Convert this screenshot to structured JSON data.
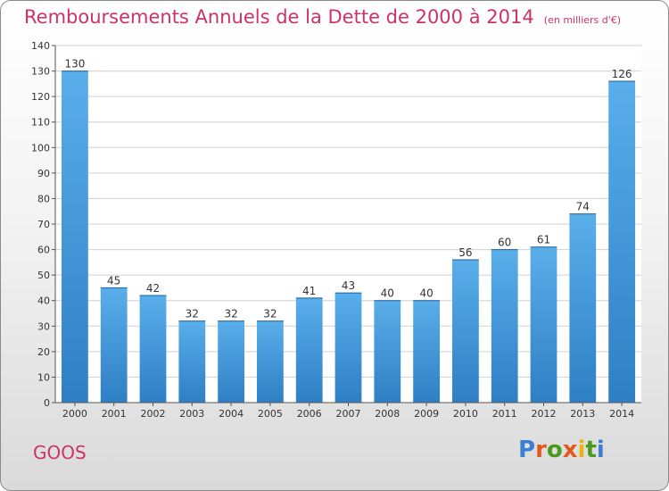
{
  "chart_data": {
    "type": "bar",
    "title": "Remboursements Annuels de la Dette de 2000 à 2014",
    "subtitle": "(en milliers d'€)",
    "categories": [
      "2000",
      "2001",
      "2002",
      "2003",
      "2004",
      "2005",
      "2006",
      "2007",
      "2008",
      "2009",
      "2010",
      "2011",
      "2012",
      "2013",
      "2014"
    ],
    "values": [
      130,
      45,
      42,
      32,
      32,
      32,
      41,
      43,
      40,
      40,
      56,
      60,
      61,
      74,
      126
    ],
    "ylim": [
      0,
      140
    ],
    "yticks": [
      0,
      10,
      20,
      30,
      40,
      50,
      60,
      70,
      80,
      90,
      100,
      110,
      120,
      130,
      140
    ],
    "xlabel": "",
    "ylabel": "",
    "grid": true,
    "bar_color": "#4a9ee0"
  },
  "footer": {
    "commune": "GOOS",
    "logo_text": "Proxiti"
  },
  "colors": {
    "title": "#cc3366",
    "logo": [
      "#3b7fd4",
      "#e05a1e",
      "#4a9a1e",
      "#e05a1e",
      "#e8b31a",
      "#4a9a1e",
      "#3b7fd4"
    ]
  }
}
